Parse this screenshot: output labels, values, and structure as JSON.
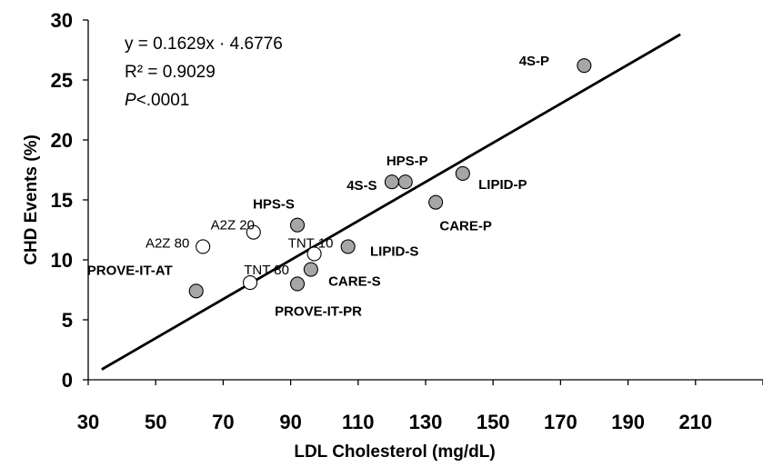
{
  "chart_data": {
    "type": "scatter",
    "xlabel": "LDL Cholesterol (mg/dL)",
    "ylabel": "CHD Events (%)",
    "xlim": [
      30,
      230
    ],
    "ylim": [
      0,
      30
    ],
    "x_ticks": [
      "30",
      "50",
      "70",
      "90",
      "110",
      "130",
      "150",
      "170",
      "190",
      "210"
    ],
    "y_ticks": [
      "0",
      "5",
      "10",
      "15",
      "20",
      "25",
      "30"
    ],
    "annotations": {
      "equation": "y = 0.1629x · 4.6776",
      "r2": "R² = 0.9029",
      "p_italic": "P",
      "p_rest": "<.0001"
    },
    "trendline": {
      "slope": 0.1629,
      "intercept": -4.6776,
      "x_start": 34,
      "x_end": 205.5
    },
    "series": [
      {
        "marker": "filled",
        "color": "#a6a6a6",
        "points": [
          {
            "label": "4S-P",
            "x": 177,
            "y": 26.2
          },
          {
            "label": "HPS-P",
            "x": 124,
            "y": 16.5
          },
          {
            "label": "4S-S",
            "x": 120,
            "y": 16.5
          },
          {
            "label": "LIPID-P",
            "x": 141,
            "y": 17.2
          },
          {
            "label": "CARE-P",
            "x": 133,
            "y": 14.8
          },
          {
            "label": "HPS-S",
            "x": 92,
            "y": 12.9
          },
          {
            "label": "LIPID-S",
            "x": 107,
            "y": 11.1
          },
          {
            "label": "CARE-S",
            "x": 96,
            "y": 9.2
          },
          {
            "label": "PROVE-IT-PR",
            "x": 92,
            "y": 8.0
          },
          {
            "label": "PROVE-IT-AT",
            "x": 62,
            "y": 7.4
          }
        ]
      },
      {
        "marker": "open",
        "color": "#ffffff",
        "points": [
          {
            "label": "A2Z 20",
            "x": 79,
            "y": 12.3
          },
          {
            "label": "A2Z 80",
            "x": 64,
            "y": 11.1
          },
          {
            "label": "TNT 10",
            "x": 97,
            "y": 10.5
          },
          {
            "label": "TNT 80",
            "x": 78,
            "y": 8.1
          }
        ]
      }
    ]
  }
}
